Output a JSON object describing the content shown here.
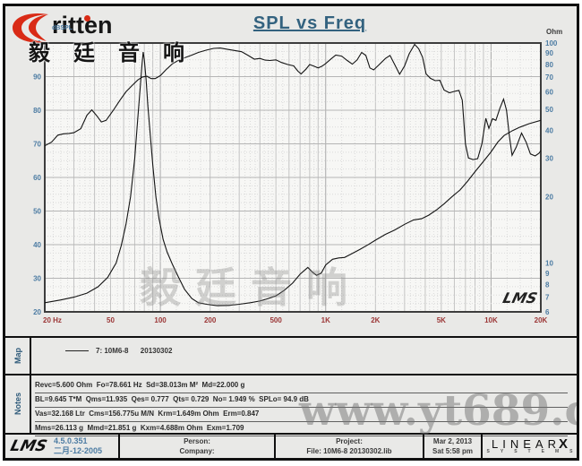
{
  "brand": {
    "logo_text": "ritten",
    "cn_text": "毅廷音响"
  },
  "title": "SPL vs Freq",
  "watermarks": {
    "chart": "毅廷音响",
    "site": "www.yt689.com",
    "lms_small": "LMS"
  },
  "map_section": {
    "label": "Map",
    "legend": "7: 10M6-8      20130302"
  },
  "notes_section": {
    "label": "Notes",
    "lines": [
      "Revc=5.600 Ohm  Fo=78.661 Hz  Sd=38.013m M²  Md=22.000 g",
      "BL=9.645 T*M  Qms=11.935  Qes= 0.777  Qts= 0.729  No= 1.949 %  SPLo= 94.9 dB",
      "Vas=32.168 Ltr  Cms=156.775u M/N  Krm=1.649m Ohm  Erm=0.847",
      "Mms=26.113 g  Mmd=21.851 g  Kxm=4.688m Ohm  Exm=1.709"
    ]
  },
  "footer": {
    "lms_logo": "LMS",
    "version": "4.5.0.351",
    "version_date": "二月-12-2005",
    "person_label": "Person:",
    "company_label": "Company:",
    "project_label": "Project:",
    "file_label": "File: 10M6-8 20130302.lib",
    "date": "Mar 2, 2013",
    "time": "Sat 5:58 pm",
    "linearx_main": "LINEAR",
    "linearx_x": "X",
    "linearx_sub": [
      "S",
      "Y",
      "S",
      "T",
      "E",
      "M",
      "S"
    ]
  },
  "chart_data": {
    "type": "line",
    "title": "SPL vs Freq",
    "grid": true,
    "x_axis": {
      "scale": "log",
      "min": 20,
      "max": 20000,
      "unit": "Hz",
      "ticks": [
        {
          "f": 20,
          "label": "20 Hz"
        },
        {
          "f": 50,
          "label": "50"
        },
        {
          "f": 100,
          "label": "100"
        },
        {
          "f": 200,
          "label": "200"
        },
        {
          "f": 500,
          "label": "500"
        },
        {
          "f": 1000,
          "label": "1K"
        },
        {
          "f": 2000,
          "label": "2K"
        },
        {
          "f": 5000,
          "label": "5K"
        },
        {
          "f": 10000,
          "label": "10K"
        },
        {
          "f": 20000,
          "label": "20K"
        }
      ]
    },
    "y_left": {
      "label": "dBSPL",
      "scale": "linear",
      "min": 20,
      "max": 100,
      "ticks": [
        100,
        90,
        80,
        70,
        60,
        50,
        40,
        30,
        20
      ]
    },
    "y_right": {
      "label": "Ohm",
      "scale": "log",
      "min": 6,
      "max": 100,
      "ticks": [
        100,
        90,
        80,
        70,
        60,
        50,
        40,
        30,
        20,
        10,
        9,
        8,
        7,
        6
      ]
    },
    "series": [
      {
        "name": "SPL 7: 10M6-8 20130302",
        "axis": "left",
        "color": "#141414",
        "points": [
          [
            20,
            69.4
          ],
          [
            22,
            70.5
          ],
          [
            24,
            72.6
          ],
          [
            26,
            73.0
          ],
          [
            28,
            73.1
          ],
          [
            30,
            73.3
          ],
          [
            33,
            74.5
          ],
          [
            36,
            78.5
          ],
          [
            38.5,
            80.1
          ],
          [
            41,
            78.5
          ],
          [
            44,
            76.5
          ],
          [
            47,
            77.0
          ],
          [
            52,
            80.0
          ],
          [
            57,
            83.0
          ],
          [
            62,
            85.5
          ],
          [
            68,
            87.5
          ],
          [
            73,
            89.0
          ],
          [
            78,
            89.9
          ],
          [
            83,
            90.1
          ],
          [
            88,
            89.4
          ],
          [
            93,
            89.4
          ],
          [
            100,
            90.3
          ],
          [
            108,
            92.0
          ],
          [
            118,
            93.8
          ],
          [
            128,
            94.8
          ],
          [
            140,
            95.6
          ],
          [
            155,
            96.4
          ],
          [
            170,
            97.2
          ],
          [
            190,
            97.9
          ],
          [
            210,
            98.4
          ],
          [
            230,
            98.5
          ],
          [
            255,
            98.1
          ],
          [
            280,
            97.8
          ],
          [
            310,
            97.4
          ],
          [
            340,
            96.3
          ],
          [
            370,
            95.2
          ],
          [
            400,
            95.4
          ],
          [
            430,
            94.9
          ],
          [
            460,
            94.8
          ],
          [
            500,
            95.0
          ],
          [
            540,
            94.2
          ],
          [
            590,
            93.6
          ],
          [
            640,
            93.2
          ],
          [
            680,
            91.6
          ],
          [
            710,
            90.8
          ],
          [
            760,
            92.2
          ],
          [
            800,
            93.6
          ],
          [
            850,
            93.1
          ],
          [
            900,
            92.6
          ],
          [
            950,
            93.1
          ],
          [
            1000,
            93.9
          ],
          [
            1080,
            95.3
          ],
          [
            1150,
            96.4
          ],
          [
            1250,
            96.1
          ],
          [
            1350,
            94.8
          ],
          [
            1450,
            93.7
          ],
          [
            1550,
            95.0
          ],
          [
            1650,
            97.2
          ],
          [
            1750,
            96.3
          ],
          [
            1850,
            92.6
          ],
          [
            1950,
            92.0
          ],
          [
            2100,
            93.5
          ],
          [
            2300,
            95.4
          ],
          [
            2450,
            96.3
          ],
          [
            2600,
            93.8
          ],
          [
            2800,
            90.7
          ],
          [
            3000,
            93.2
          ],
          [
            3200,
            96.8
          ],
          [
            3450,
            99.6
          ],
          [
            3650,
            98.3
          ],
          [
            3850,
            95.8
          ],
          [
            4050,
            90.8
          ],
          [
            4300,
            89.5
          ],
          [
            4600,
            88.8
          ],
          [
            4900,
            88.9
          ],
          [
            5200,
            86.0
          ],
          [
            5600,
            85.2
          ],
          [
            6000,
            85.6
          ],
          [
            6400,
            85.9
          ],
          [
            6700,
            83.0
          ],
          [
            7000,
            70.0
          ],
          [
            7300,
            65.8
          ],
          [
            7800,
            65.3
          ],
          [
            8300,
            65.6
          ],
          [
            8800,
            70.0
          ],
          [
            9300,
            77.6
          ],
          [
            9700,
            74.6
          ],
          [
            10200,
            77.5
          ],
          [
            10700,
            77.0
          ],
          [
            11300,
            80.5
          ],
          [
            11900,
            83.3
          ],
          [
            12400,
            80.0
          ],
          [
            12900,
            72.5
          ],
          [
            13400,
            66.6
          ],
          [
            14200,
            69.0
          ],
          [
            15300,
            73.2
          ],
          [
            16300,
            70.5
          ],
          [
            17300,
            67.0
          ],
          [
            18500,
            66.4
          ],
          [
            19500,
            67.2
          ],
          [
            20000,
            68.0
          ]
        ]
      },
      {
        "name": "Impedance 7: 10M6-8 20130302",
        "axis": "right",
        "color": "#141414",
        "points": [
          [
            20,
            6.6
          ],
          [
            25,
            6.8
          ],
          [
            30,
            7.0
          ],
          [
            36,
            7.3
          ],
          [
            42,
            7.8
          ],
          [
            48,
            8.6
          ],
          [
            54,
            10.0
          ],
          [
            58,
            12.0
          ],
          [
            62,
            15.0
          ],
          [
            66,
            20.0
          ],
          [
            70,
            30.0
          ],
          [
            73,
            45.0
          ],
          [
            75.5,
            62.0
          ],
          [
            77.5,
            80.0
          ],
          [
            78.7,
            91.0
          ],
          [
            80,
            84.0
          ],
          [
            82,
            68.0
          ],
          [
            84,
            52.0
          ],
          [
            87,
            38.0
          ],
          [
            90,
            28.0
          ],
          [
            94,
            20.0
          ],
          [
            98,
            16.0
          ],
          [
            104,
            12.8
          ],
          [
            110,
            11.2
          ],
          [
            118,
            9.9
          ],
          [
            128,
            8.7
          ],
          [
            140,
            7.6
          ],
          [
            155,
            6.9
          ],
          [
            170,
            6.6
          ],
          [
            190,
            6.5
          ],
          [
            220,
            6.4
          ],
          [
            260,
            6.42
          ],
          [
            300,
            6.5
          ],
          [
            350,
            6.6
          ],
          [
            400,
            6.72
          ],
          [
            450,
            6.9
          ],
          [
            500,
            7.1
          ],
          [
            560,
            7.5
          ],
          [
            630,
            8.1
          ],
          [
            700,
            8.9
          ],
          [
            780,
            9.55
          ],
          [
            830,
            9.1
          ],
          [
            880,
            8.8
          ],
          [
            940,
            9.0
          ],
          [
            1000,
            9.8
          ],
          [
            1100,
            10.4
          ],
          [
            1200,
            10.55
          ],
          [
            1300,
            10.6
          ],
          [
            1400,
            10.9
          ],
          [
            1600,
            11.5
          ],
          [
            1800,
            12.1
          ],
          [
            2000,
            12.7
          ],
          [
            2300,
            13.5
          ],
          [
            2600,
            14.1
          ],
          [
            3000,
            15.0
          ],
          [
            3400,
            15.7
          ],
          [
            3800,
            15.9
          ],
          [
            4200,
            16.5
          ],
          [
            4700,
            17.5
          ],
          [
            5200,
            18.6
          ],
          [
            5800,
            20.0
          ],
          [
            6500,
            21.5
          ],
          [
            7200,
            23.5
          ],
          [
            8000,
            26.0
          ],
          [
            9000,
            29.0
          ],
          [
            10000,
            32.0
          ],
          [
            11000,
            35.5
          ],
          [
            12000,
            38.0
          ],
          [
            13500,
            40.0
          ],
          [
            15000,
            41.5
          ],
          [
            17000,
            43.0
          ],
          [
            20000,
            44.5
          ]
        ]
      }
    ]
  }
}
